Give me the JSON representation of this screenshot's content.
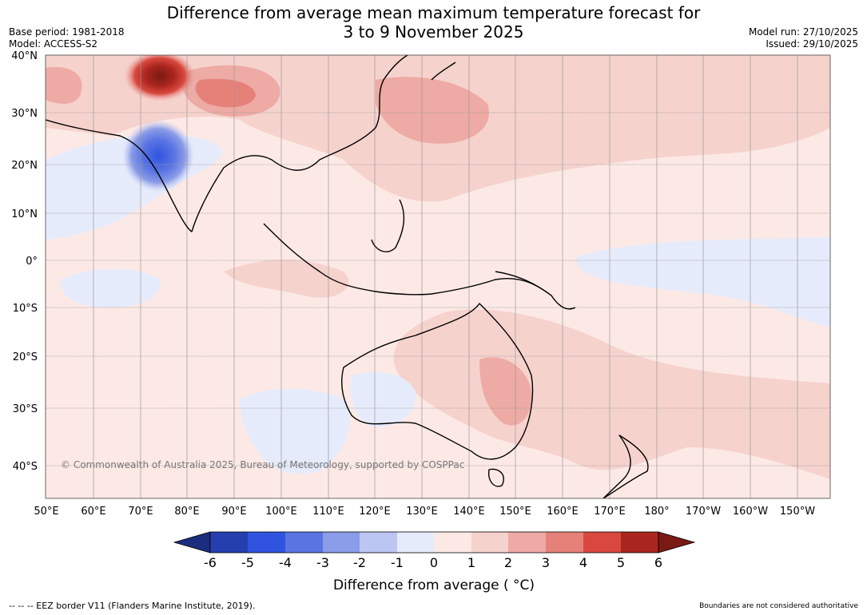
{
  "header": {
    "title_line1": "Difference from average mean maximum temperature forecast for",
    "title_line2": "3 to 9 November 2025",
    "base_period": "Base period: 1981-2018",
    "model": "Model: ACCESS-S2",
    "model_run": "Model run: 27/10/2025",
    "issued": "Issued: 29/10/2025"
  },
  "map": {
    "lat_labels": [
      "40°N",
      "30°N",
      "20°N",
      "10°N",
      "0°",
      "10°S",
      "20°S",
      "30°S",
      "40°S"
    ],
    "lon_labels": [
      "50°E",
      "60°E",
      "70°E",
      "80°E",
      "90°E",
      "100°E",
      "110°E",
      "120°E",
      "130°E",
      "140°E",
      "150°E",
      "160°E",
      "170°E",
      "180°",
      "170°W",
      "160°W",
      "150°W"
    ],
    "copyright": "© Commonwealth of Australia 2025, Bureau of Meteorology, supported by COSPPac"
  },
  "legend": {
    "tick_labels": [
      "-6",
      "-5",
      "-4",
      "-3",
      "-2",
      "-1",
      "0",
      "1",
      "2",
      "3",
      "4",
      "5",
      "6"
    ],
    "colors": [
      "#1b2d7e",
      "#263fae",
      "#3054e0",
      "#5a74e2",
      "#8b9ce8",
      "#bcc6f3",
      "#e6ebfb",
      "#fce9e6",
      "#f6d2cd",
      "#eeaaa4",
      "#e6817a",
      "#d9483f",
      "#a9261e",
      "#7a1a14"
    ],
    "label": "Difference from average ( °C)"
  },
  "footer": {
    "eez_note": "--  --  -- EEZ border V11 (Flanders Marine Institute, 2019).",
    "disclaimer": "Boundaries are not considered authoritative"
  }
}
